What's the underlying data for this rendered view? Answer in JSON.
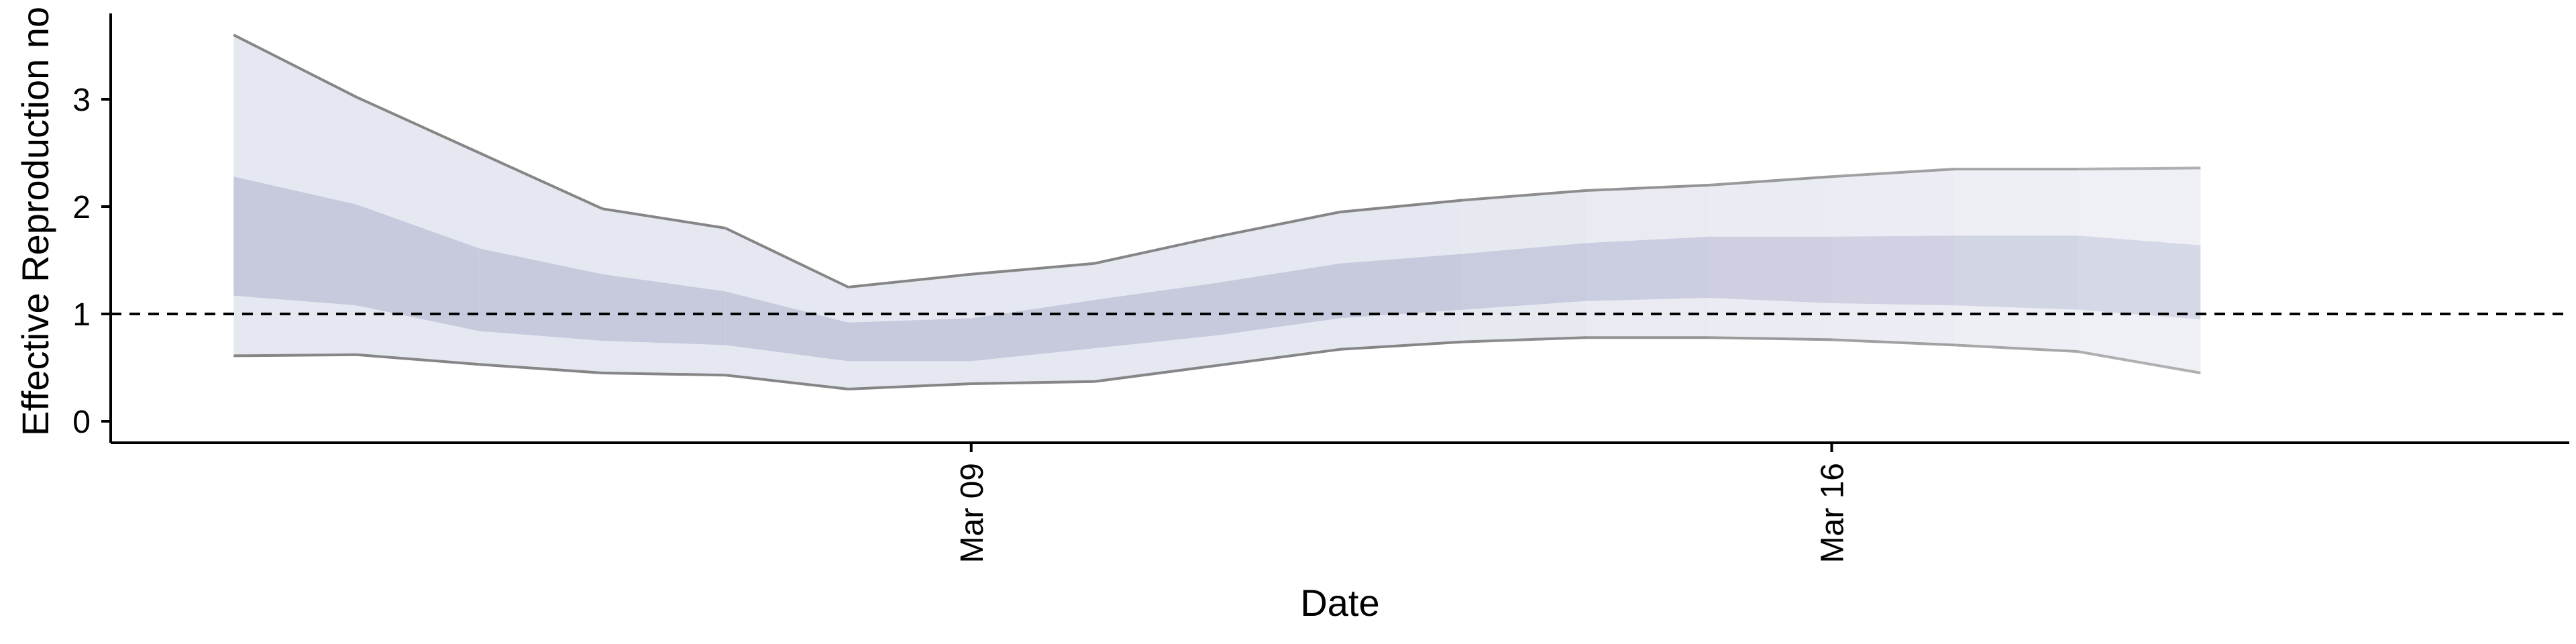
{
  "chart_data": {
    "type": "area",
    "title": "",
    "xlabel": "Date",
    "ylabel": "Effective Reproduction no",
    "x_range": [
      "2020-03-02",
      "2020-03-22"
    ],
    "ylim": [
      -0.2,
      3.8
    ],
    "yticks": [
      0,
      1,
      2,
      3
    ],
    "x_ticks": [
      {
        "date": "2020-03-09",
        "label": "Mar 09"
      },
      {
        "date": "2020-03-16",
        "label": "Mar 16"
      }
    ],
    "reference_line": {
      "y": 1,
      "style": "dashed"
    },
    "grid": false,
    "legend": "none",
    "x": [
      "2020-03-03",
      "2020-03-04",
      "2020-03-05",
      "2020-03-06",
      "2020-03-07",
      "2020-03-08",
      "2020-03-09",
      "2020-03-10",
      "2020-03-11",
      "2020-03-12",
      "2020-03-13",
      "2020-03-14",
      "2020-03-15",
      "2020-03-16",
      "2020-03-17",
      "2020-03-18",
      "2020-03-19"
    ],
    "series": [
      {
        "band": "outer",
        "lower": [
          0.61,
          0.62,
          0.53,
          0.45,
          0.43,
          0.3,
          0.35,
          0.37,
          0.52,
          0.67,
          0.74,
          0.78,
          0.78,
          0.76,
          0.71,
          0.65,
          0.45
        ],
        "upper": [
          3.6,
          3.02,
          2.5,
          1.98,
          1.8,
          1.25,
          1.37,
          1.47,
          1.72,
          1.95,
          2.06,
          2.15,
          2.2,
          2.28,
          2.35,
          2.35,
          2.36
        ]
      },
      {
        "band": "inner",
        "lower": [
          1.17,
          1.08,
          0.84,
          0.75,
          0.71,
          0.56,
          0.56,
          0.68,
          0.8,
          0.96,
          1.04,
          1.12,
          1.15,
          1.1,
          1.08,
          1.04,
          0.95
        ],
        "upper": [
          2.28,
          2.02,
          1.61,
          1.37,
          1.21,
          0.92,
          0.96,
          1.13,
          1.29,
          1.47,
          1.56,
          1.66,
          1.72,
          1.72,
          1.73,
          1.73,
          1.64
        ]
      }
    ],
    "colors": {
      "outer_band": "#e3e5ef",
      "inner_band": "#c3c6da",
      "band_edge": "#808080",
      "axis": "#000000"
    }
  }
}
